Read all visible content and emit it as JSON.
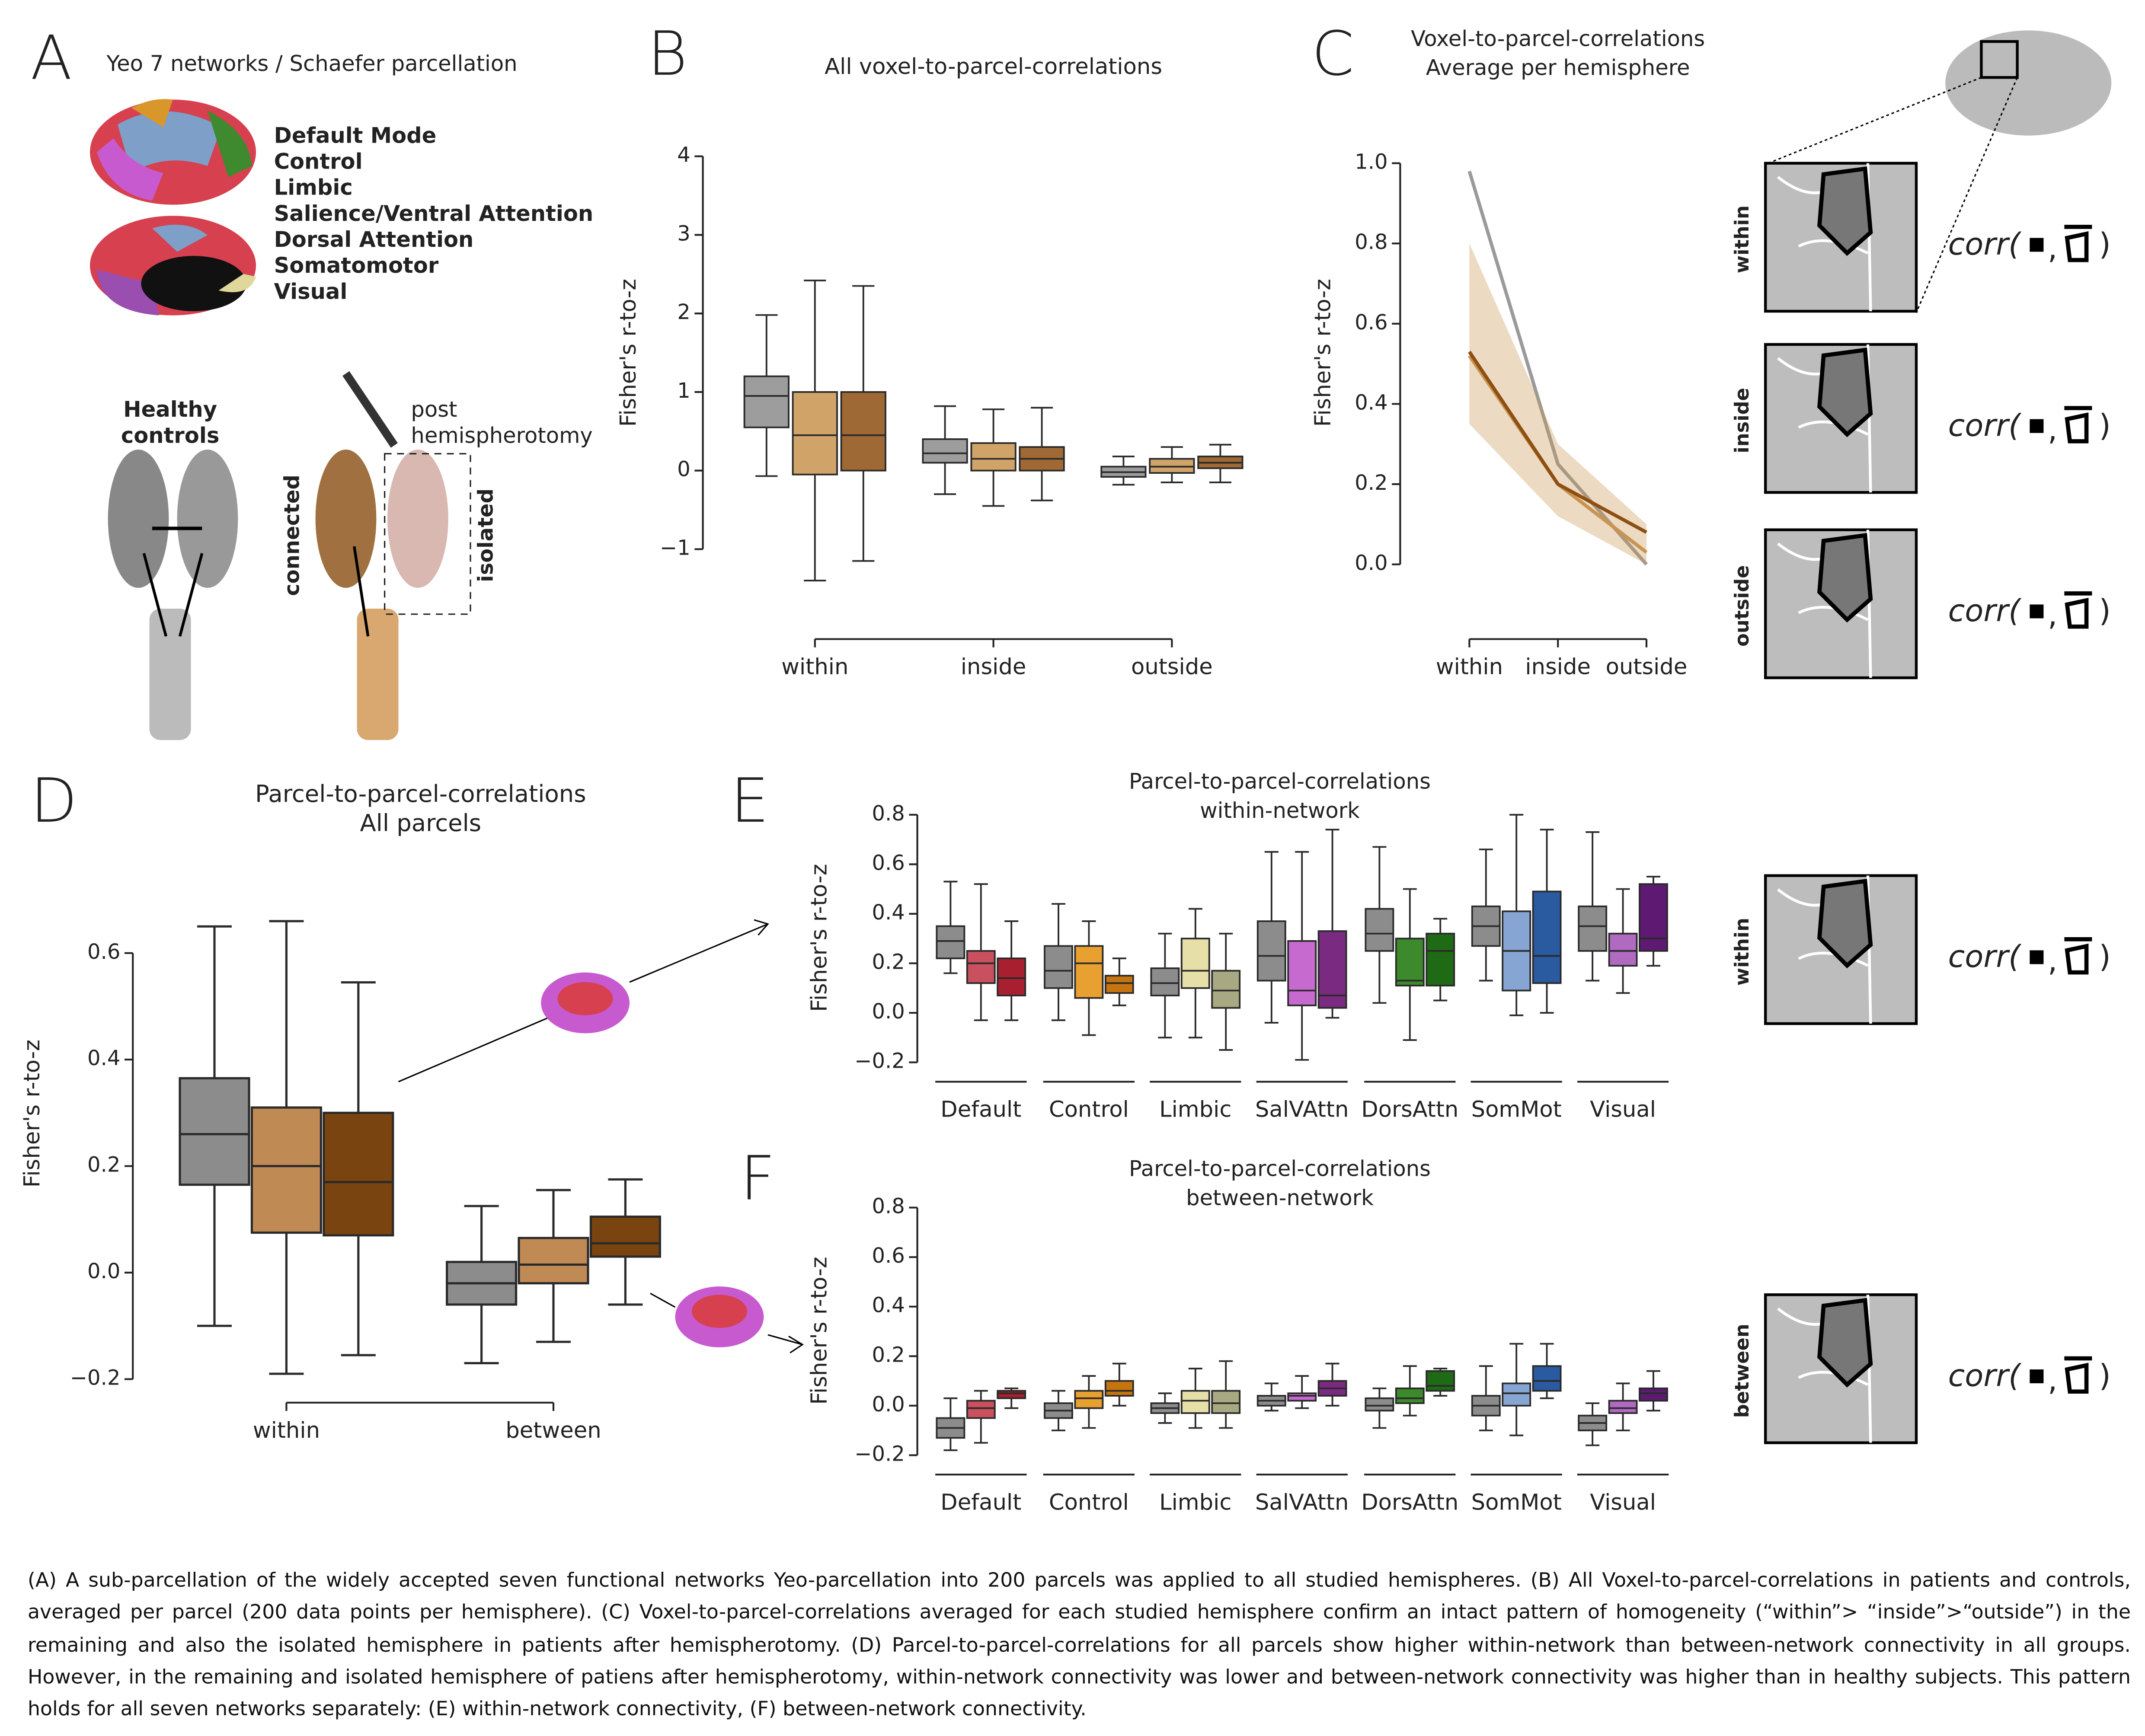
{
  "panel_letters": [
    "A",
    "B",
    "C",
    "D",
    "E",
    "F"
  ],
  "panel_a": {
    "title": "Yeo 7 networks / Schaefer parcellation",
    "networks": [
      {
        "name": "Default Mode",
        "color": "#b5435a"
      },
      {
        "name": "Control",
        "color": "#d9962b"
      },
      {
        "name": "Limbic",
        "color": "#e0d79a"
      },
      {
        "name": "Salience/Ventral Attention",
        "color": "#c85ad0"
      },
      {
        "name": "Dorsal Attention",
        "color": "#3f8a2f"
      },
      {
        "name": "Somatomotor",
        "color": "#7d9fc8"
      },
      {
        "name": "Visual",
        "color": "#9a4fb0"
      }
    ],
    "healthy": [
      "Healthy",
      "controls"
    ],
    "post": [
      "post",
      "hemispherotomy"
    ],
    "connected": "connected",
    "isolated": "isolated"
  },
  "chart_data": [
    {
      "type": "box",
      "title": "All voxel-to-parcel-correlations",
      "ylabel": "Fisher's r-to-z",
      "categories": [
        "within",
        "inside",
        "outside"
      ],
      "ylim": [
        -1,
        4
      ],
      "yticks": [
        {
          "value": -1,
          "label": "−1"
        },
        0,
        1,
        2,
        3,
        4
      ],
      "series": [
        {
          "color": "#8c8c8c",
          "values": [
            [
              -0.07,
              0.55,
              0.95,
              1.2,
              1.98
            ],
            [
              -0.3,
              0.1,
              0.22,
              0.4,
              0.82
            ],
            [
              -0.18,
              -0.08,
              -0.02,
              0.05,
              0.18
            ]
          ]
        },
        {
          "color": "#c8944f",
          "values": [
            [
              -1.4,
              -0.05,
              0.45,
              1.0,
              2.42
            ],
            [
              -0.45,
              0.0,
              0.15,
              0.35,
              0.78
            ],
            [
              -0.15,
              -0.03,
              0.05,
              0.15,
              0.3
            ]
          ]
        },
        {
          "color": "#8e4f12",
          "values": [
            [
              -1.15,
              0.0,
              0.45,
              1.0,
              2.35
            ],
            [
              -0.38,
              0.0,
              0.15,
              0.3,
              0.8
            ],
            [
              -0.15,
              0.03,
              0.1,
              0.18,
              0.33
            ]
          ]
        }
      ]
    },
    {
      "type": "line",
      "title": [
        "Voxel-to-parcel-correlations",
        "Average per hemisphere"
      ],
      "ylabel": "Fisher's r-to-z",
      "categories": [
        "within",
        "inside",
        "outside"
      ],
      "ylim": [
        0,
        1
      ],
      "yticks": [
        {
          "value": 0,
          "label": "0.0"
        },
        0.2,
        0.4,
        0.6,
        0.8,
        {
          "value": 1,
          "label": "1.0"
        }
      ],
      "series": [
        {
          "color": "#9a9a9a",
          "values": [
            0.98,
            0.25,
            0.0
          ]
        },
        {
          "color": "#c8944f",
          "values": [
            0.52,
            0.2,
            0.03
          ],
          "lower": [
            0.35,
            0.12,
            0.0
          ],
          "upper": [
            0.8,
            0.3,
            0.1
          ]
        },
        {
          "color": "#8e4f12",
          "values": [
            0.53,
            0.2,
            0.08
          ]
        }
      ]
    },
    {
      "type": "box",
      "title": [
        "Parcel-to-parcel-correlations",
        "All parcels"
      ],
      "ylabel": "Fisher's r-to-z",
      "categories": [
        "within",
        "between"
      ],
      "ylim": [
        -0.2,
        0.6
      ],
      "yticks": [
        {
          "value": -0.2,
          "label": "−0.2"
        },
        {
          "value": 0,
          "label": "0.0"
        },
        0.2,
        0.4,
        0.6
      ],
      "series": [
        {
          "color": "#8c8c8c",
          "values": [
            [
              -0.1,
              0.165,
              0.26,
              0.365,
              0.65
            ],
            [
              -0.17,
              -0.06,
              -0.02,
              0.02,
              0.125
            ]
          ]
        },
        {
          "color": "#c08a55",
          "values": [
            [
              -0.19,
              0.075,
              0.2,
              0.31,
              0.66
            ],
            [
              -0.13,
              -0.02,
              0.015,
              0.065,
              0.155
            ]
          ]
        },
        {
          "color": "#7a4410",
          "values": [
            [
              -0.155,
              0.07,
              0.17,
              0.3,
              0.545
            ],
            [
              -0.06,
              0.03,
              0.055,
              0.105,
              0.175
            ]
          ]
        }
      ]
    },
    {
      "type": "box",
      "title": [
        "Parcel-to-parcel-correlations",
        "within-network"
      ],
      "ylabel": "Fisher's r-to-z",
      "categories": [
        "Default",
        "Control",
        "Limbic",
        "SalVAttn",
        "DorsAttn",
        "SomMot",
        "Visual"
      ],
      "ylim": [
        -0.2,
        0.8
      ],
      "yticks": [
        {
          "value": -0.2,
          "label": "−0.2"
        },
        {
          "value": 0,
          "label": "0.0"
        },
        0.2,
        0.4,
        0.6,
        0.8
      ],
      "series": [
        {
          "color": "#8c8c8c",
          "values": [
            [
              0.16,
              0.22,
              0.29,
              0.35,
              0.53
            ],
            [
              -0.03,
              0.1,
              0.17,
              0.27,
              0.44
            ],
            [
              -0.1,
              0.07,
              0.12,
              0.18,
              0.32
            ],
            [
              -0.04,
              0.13,
              0.23,
              0.37,
              0.65
            ],
            [
              0.04,
              0.25,
              0.32,
              0.42,
              0.67
            ],
            [
              0.13,
              0.27,
              0.35,
              0.43,
              0.66
            ],
            [
              0.13,
              0.25,
              0.35,
              0.43,
              0.73
            ]
          ]
        },
        {
          "colors": [
            "#c9505e",
            "#e8a030",
            "#e6e0a8",
            "#c66ad0",
            "#3c8a2c",
            "#86a5d2",
            "#b06ac0"
          ],
          "values": [
            [
              -0.03,
              0.12,
              0.2,
              0.25,
              0.52
            ],
            [
              -0.09,
              0.06,
              0.2,
              0.27,
              0.37
            ],
            [
              -0.1,
              0.1,
              0.17,
              0.3,
              0.42
            ],
            [
              -0.19,
              0.03,
              0.09,
              0.29,
              0.65
            ],
            [
              -0.11,
              0.11,
              0.13,
              0.3,
              0.5
            ],
            [
              -0.01,
              0.09,
              0.25,
              0.41,
              0.8
            ],
            [
              0.08,
              0.19,
              0.25,
              0.32,
              0.5
            ]
          ]
        },
        {
          "colors": [
            "#a8202f",
            "#c57410",
            "#a8a882",
            "#7a2a80",
            "#1f6a14",
            "#2a5aa0",
            "#5e1a72"
          ],
          "values": [
            [
              -0.03,
              0.07,
              0.14,
              0.22,
              0.37
            ],
            [
              0.03,
              0.08,
              0.12,
              0.15,
              0.22
            ],
            [
              -0.15,
              0.02,
              0.09,
              0.17,
              0.32
            ],
            [
              -0.02,
              0.02,
              0.07,
              0.33,
              0.74
            ],
            [
              0.05,
              0.11,
              0.25,
              0.32,
              0.38
            ],
            [
              0.0,
              0.12,
              0.23,
              0.49,
              0.74
            ],
            [
              0.19,
              0.25,
              0.3,
              0.52,
              0.55
            ]
          ]
        }
      ]
    },
    {
      "type": "box",
      "title": [
        "Parcel-to-parcel-correlations",
        "between-network"
      ],
      "ylabel": "Fisher's r-to-z",
      "categories": [
        "Default",
        "Control",
        "Limbic",
        "SalVAttn",
        "DorsAttn",
        "SomMot",
        "Visual"
      ],
      "ylim": [
        -0.2,
        0.8
      ],
      "yticks": [
        {
          "value": -0.2,
          "label": "−0.2"
        },
        {
          "value": 0,
          "label": "0.0"
        },
        0.2,
        0.4,
        0.6,
        0.8
      ],
      "series": [
        {
          "color": "#8c8c8c",
          "values": [
            [
              -0.18,
              -0.13,
              -0.09,
              -0.05,
              0.03
            ],
            [
              -0.1,
              -0.05,
              -0.02,
              0.01,
              0.06
            ],
            [
              -0.07,
              -0.03,
              -0.01,
              0.01,
              0.05
            ],
            [
              -0.02,
              0.0,
              0.02,
              0.04,
              0.09
            ],
            [
              -0.09,
              -0.02,
              0.0,
              0.03,
              0.07
            ],
            [
              -0.1,
              -0.04,
              0.0,
              0.04,
              0.16
            ],
            [
              -0.16,
              -0.1,
              -0.07,
              -0.04,
              0.01
            ]
          ]
        },
        {
          "colors": [
            "#c9505e",
            "#e8a030",
            "#e6e0a8",
            "#c66ad0",
            "#3c8a2c",
            "#86a5d2",
            "#b06ac0"
          ],
          "values": [
            [
              -0.15,
              -0.05,
              -0.01,
              0.02,
              0.06
            ],
            [
              -0.09,
              -0.01,
              0.03,
              0.06,
              0.12
            ],
            [
              -0.09,
              -0.03,
              0.02,
              0.06,
              0.15
            ],
            [
              -0.01,
              0.02,
              0.04,
              0.05,
              0.12
            ],
            [
              -0.04,
              0.01,
              0.03,
              0.07,
              0.16
            ],
            [
              -0.12,
              0.0,
              0.05,
              0.09,
              0.25
            ],
            [
              -0.1,
              -0.03,
              -0.01,
              0.02,
              0.09
            ]
          ]
        },
        {
          "colors": [
            "#a8202f",
            "#c57410",
            "#a8a882",
            "#7a2a80",
            "#1f6a14",
            "#2a5aa0",
            "#5e1a72"
          ],
          "values": [
            [
              -0.01,
              0.03,
              0.05,
              0.06,
              0.07
            ],
            [
              0.0,
              0.04,
              0.06,
              0.1,
              0.17
            ],
            [
              -0.09,
              -0.03,
              0.01,
              0.06,
              0.18
            ],
            [
              0.0,
              0.04,
              0.07,
              0.1,
              0.17
            ],
            [
              0.04,
              0.06,
              0.08,
              0.14,
              0.15
            ],
            [
              0.03,
              0.06,
              0.1,
              0.16,
              0.25
            ],
            [
              -0.02,
              0.02,
              0.05,
              0.07,
              0.14
            ]
          ]
        }
      ]
    }
  ],
  "side_panels": [
    {
      "label": "within",
      "formula": [
        "corr(",
        ",",
        ")"
      ]
    },
    {
      "label": "inside",
      "formula": [
        "corr(",
        ",",
        ")"
      ]
    },
    {
      "label": "outside",
      "formula": [
        "corr(",
        ",",
        ")"
      ]
    },
    {
      "label": "within",
      "formula": [
        "corr(",
        ",",
        ")"
      ]
    },
    {
      "label": "between",
      "formula": [
        "corr(",
        ",",
        ")"
      ]
    }
  ],
  "caption": "(A) A sub-parcellation of the widely accepted seven functional networks Yeo-parcellation into 200 parcels was applied to all studied hemispheres. (B) All Voxel-to-parcel-correlations in patients and controls, averaged per parcel (200 data points per hemisphere). (C) Voxel-to-parcel-correlations averaged for each studied hemisphere confirm an intact pattern of homogeneity (“within”> “inside”>“outside”) in the remaining and also the isolated hemisphere in patients after hemispherotomy. (D) Parcel-to-parcel-correlations for all parcels show higher within-network than between-network connectivity in all groups. However, in the remaining and isolated hemisphere of patiens after hemispherotomy, within-network connectivity was lower and between-network connectivity was higher than in healthy subjects. This pattern holds for all seven networks separately: (E) within-network connectivity, (F) between-network connectivity."
}
